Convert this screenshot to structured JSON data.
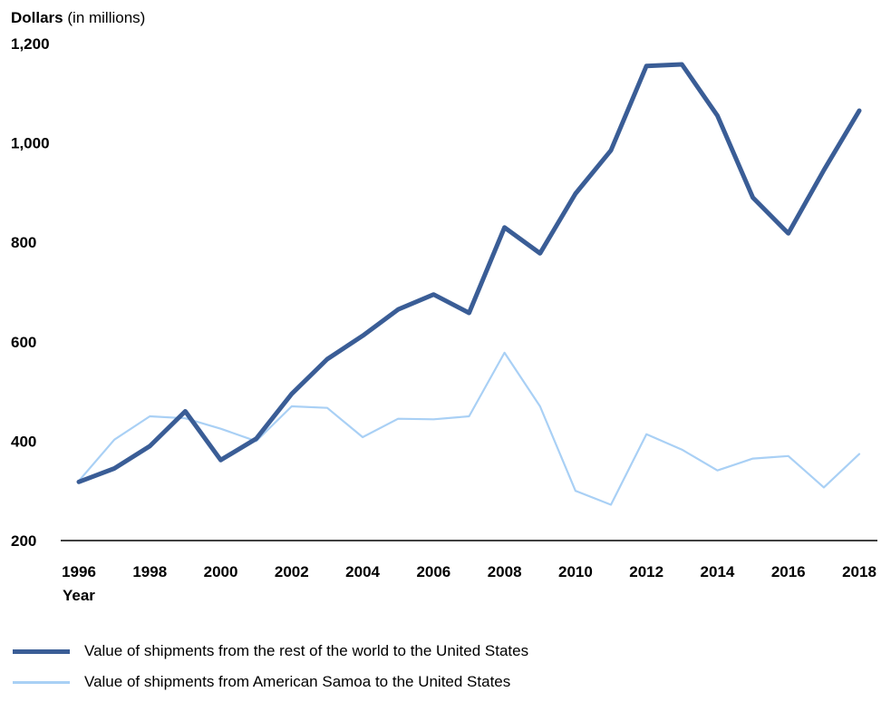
{
  "chart_data": {
    "type": "line",
    "ylabel_bold": "Dollars",
    "ylabel_rest": "(in millions)",
    "xlabel": "Year",
    "ylim": [
      200,
      1200
    ],
    "yticks": [
      "200",
      "400",
      "600",
      "800",
      "1,000",
      "1,200"
    ],
    "xticks": [
      "1996",
      "1998",
      "2000",
      "2002",
      "2004",
      "2006",
      "2008",
      "2010",
      "2012",
      "2014",
      "2016",
      "2018"
    ],
    "x": [
      1996,
      1997,
      1998,
      1999,
      2000,
      2001,
      2002,
      2003,
      2004,
      2005,
      2006,
      2007,
      2008,
      2009,
      2010,
      2011,
      2012,
      2013,
      2014,
      2015,
      2016,
      2017,
      2018
    ],
    "series": [
      {
        "name": "Value of shipments from the rest of the world to the United States",
        "color": "#3a5d96",
        "values": [
          318,
          345,
          390,
          460,
          362,
          405,
          495,
          565,
          612,
          665,
          695,
          658,
          830,
          778,
          898,
          985,
          1155,
          1158,
          1055,
          890,
          818,
          945,
          1065
        ]
      },
      {
        "name": "Value of shipments from American Samoa to the United States",
        "color": "#a9d0f5",
        "values": [
          320,
          403,
          450,
          446,
          425,
          400,
          470,
          467,
          408,
          445,
          444,
          450,
          578,
          470,
          300,
          272,
          414,
          383,
          341,
          365,
          370,
          307,
          374
        ]
      }
    ]
  }
}
